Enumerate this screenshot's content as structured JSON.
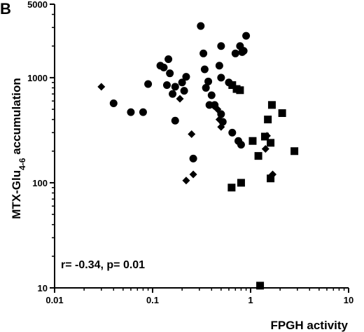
{
  "chart_data": {
    "type": "scatter",
    "panel_label": "B",
    "title": "",
    "xlabel": "FPGH activity",
    "ylabel_main": "MTX-Glu",
    "ylabel_sub": "4-6",
    "ylabel_end": " accumulation",
    "xscale": "log",
    "yscale": "log",
    "xlim": [
      0.01,
      10
    ],
    "ylim": [
      10,
      5000
    ],
    "xticks": [
      {
        "value": 0.01,
        "label": "0.01"
      },
      {
        "value": 0.1,
        "label": "0.1"
      },
      {
        "value": 1,
        "label": "1"
      },
      {
        "value": 10,
        "label": "10"
      }
    ],
    "yticks": [
      {
        "value": 10,
        "label": "10"
      },
      {
        "value": 100,
        "label": "100"
      },
      {
        "value": 1000,
        "label": "1000"
      },
      {
        "value": 5000,
        "label": "5000"
      }
    ],
    "grid": false,
    "annotation": "r= -0.34, p= 0.01",
    "series": [
      {
        "marker": "circle",
        "color": "#000000",
        "points": [
          {
            "x": 0.04,
            "y": 570
          },
          {
            "x": 0.06,
            "y": 470
          },
          {
            "x": 0.08,
            "y": 470
          },
          {
            "x": 0.09,
            "y": 870
          },
          {
            "x": 0.12,
            "y": 1300
          },
          {
            "x": 0.13,
            "y": 1250
          },
          {
            "x": 0.14,
            "y": 850
          },
          {
            "x": 0.145,
            "y": 1500
          },
          {
            "x": 0.15,
            "y": 1100
          },
          {
            "x": 0.16,
            "y": 700
          },
          {
            "x": 0.17,
            "y": 820
          },
          {
            "x": 0.17,
            "y": 390
          },
          {
            "x": 0.2,
            "y": 900
          },
          {
            "x": 0.21,
            "y": 750
          },
          {
            "x": 0.22,
            "y": 1020
          },
          {
            "x": 0.26,
            "y": 170
          },
          {
            "x": 0.31,
            "y": 3100
          },
          {
            "x": 0.33,
            "y": 1700
          },
          {
            "x": 0.34,
            "y": 1200
          },
          {
            "x": 0.35,
            "y": 800
          },
          {
            "x": 0.37,
            "y": 920
          },
          {
            "x": 0.38,
            "y": 550
          },
          {
            "x": 0.4,
            "y": 680
          },
          {
            "x": 0.43,
            "y": 550
          },
          {
            "x": 0.48,
            "y": 1300
          },
          {
            "x": 0.5,
            "y": 2000
          },
          {
            "x": 0.5,
            "y": 1000
          },
          {
            "x": 0.5,
            "y": 450
          },
          {
            "x": 0.52,
            "y": 380
          },
          {
            "x": 0.6,
            "y": 900
          },
          {
            "x": 0.65,
            "y": 300
          },
          {
            "x": 0.7,
            "y": 1700
          },
          {
            "x": 0.75,
            "y": 250
          },
          {
            "x": 0.78,
            "y": 2000
          },
          {
            "x": 0.8,
            "y": 230
          },
          {
            "x": 0.82,
            "y": 1750
          },
          {
            "x": 0.85,
            "y": 1800
          },
          {
            "x": 0.9,
            "y": 2500
          }
        ]
      },
      {
        "marker": "diamond",
        "color": "#000000",
        "points": [
          {
            "x": 0.03,
            "y": 820
          },
          {
            "x": 0.19,
            "y": 630
          },
          {
            "x": 0.22,
            "y": 105
          },
          {
            "x": 0.25,
            "y": 290
          },
          {
            "x": 0.26,
            "y": 120
          },
          {
            "x": 0.42,
            "y": 540
          },
          {
            "x": 0.46,
            "y": 500
          },
          {
            "x": 0.48,
            "y": 400
          },
          {
            "x": 0.5,
            "y": 340
          },
          {
            "x": 1.42,
            "y": 210
          },
          {
            "x": 1.47,
            "y": 280
          },
          {
            "x": 1.68,
            "y": 120
          }
        ]
      },
      {
        "marker": "square",
        "color": "#000000",
        "points": [
          {
            "x": 0.65,
            "y": 850
          },
          {
            "x": 0.72,
            "y": 780
          },
          {
            "x": 0.78,
            "y": 760
          },
          {
            "x": 0.64,
            "y": 90
          },
          {
            "x": 0.8,
            "y": 100
          },
          {
            "x": 1.05,
            "y": 250
          },
          {
            "x": 1.2,
            "y": 180
          },
          {
            "x": 1.25,
            "y": 10.5
          },
          {
            "x": 1.4,
            "y": 275
          },
          {
            "x": 1.5,
            "y": 400
          },
          {
            "x": 1.6,
            "y": 240
          },
          {
            "x": 1.6,
            "y": 110
          },
          {
            "x": 1.65,
            "y": 550
          },
          {
            "x": 2.1,
            "y": 460
          },
          {
            "x": 2.8,
            "y": 200
          }
        ]
      }
    ]
  }
}
